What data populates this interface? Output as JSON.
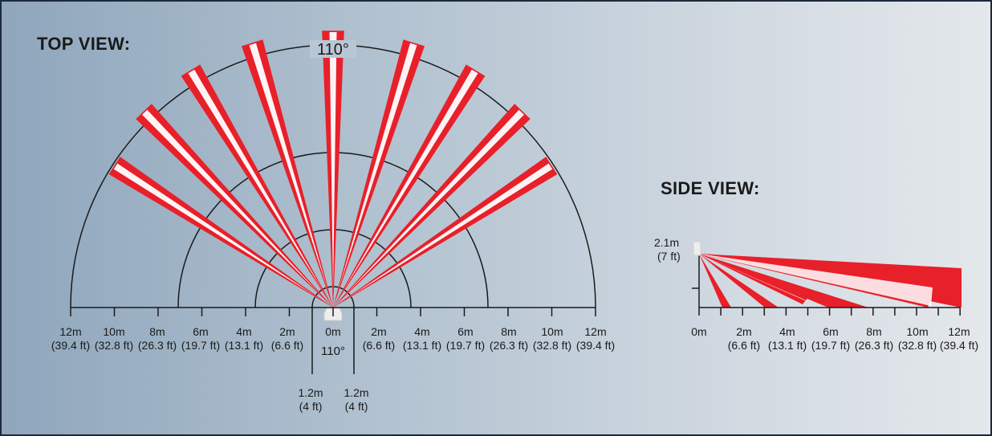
{
  "top_view": {
    "title": "TOP VIEW:",
    "angle_top": "110°",
    "angle_bottom": "110°",
    "scale_left": [
      {
        "m": "12m",
        "ft": "(39.4 ft)"
      },
      {
        "m": "10m",
        "ft": "(32.8 ft)"
      },
      {
        "m": "8m",
        "ft": "(26.3 ft)"
      },
      {
        "m": "6m",
        "ft": "(19.7 ft)"
      },
      {
        "m": "4m",
        "ft": "(13.1 ft)"
      },
      {
        "m": "2m",
        "ft": "(6.6 ft)"
      }
    ],
    "scale_center": {
      "m": "0m"
    },
    "scale_right": [
      {
        "m": "2m",
        "ft": "(6.6 ft)"
      },
      {
        "m": "4m",
        "ft": "(13.1 ft)"
      },
      {
        "m": "6m",
        "ft": "(19.7 ft)"
      },
      {
        "m": "8m",
        "ft": "(26.3 ft)"
      },
      {
        "m": "10m",
        "ft": "(32.8 ft)"
      },
      {
        "m": "12m",
        "ft": "(39.4 ft)"
      }
    ],
    "offset_left": {
      "m": "1.2m",
      "ft": "(4 ft)"
    },
    "offset_right": {
      "m": "1.2m",
      "ft": "(4 ft)"
    }
  },
  "side_view": {
    "title": "SIDE VIEW:",
    "height": {
      "m": "2.1m",
      "ft": "(7 ft)"
    },
    "scale": [
      {
        "m": "0m",
        "ft": ""
      },
      {
        "m": "2m",
        "ft": "(6.6 ft)"
      },
      {
        "m": "4m",
        "ft": "(13.1 ft)"
      },
      {
        "m": "6m",
        "ft": "(19.7 ft)"
      },
      {
        "m": "8m",
        "ft": "(26.3 ft)"
      },
      {
        "m": "10m",
        "ft": "(32.8 ft)"
      },
      {
        "m": "12m",
        "ft": "(39.4 ft)"
      }
    ]
  },
  "colors": {
    "beam_red": "#e8202a",
    "beam_white": "#ffffff",
    "line": "#1a1a1a",
    "frame": "#1c2a3a"
  }
}
